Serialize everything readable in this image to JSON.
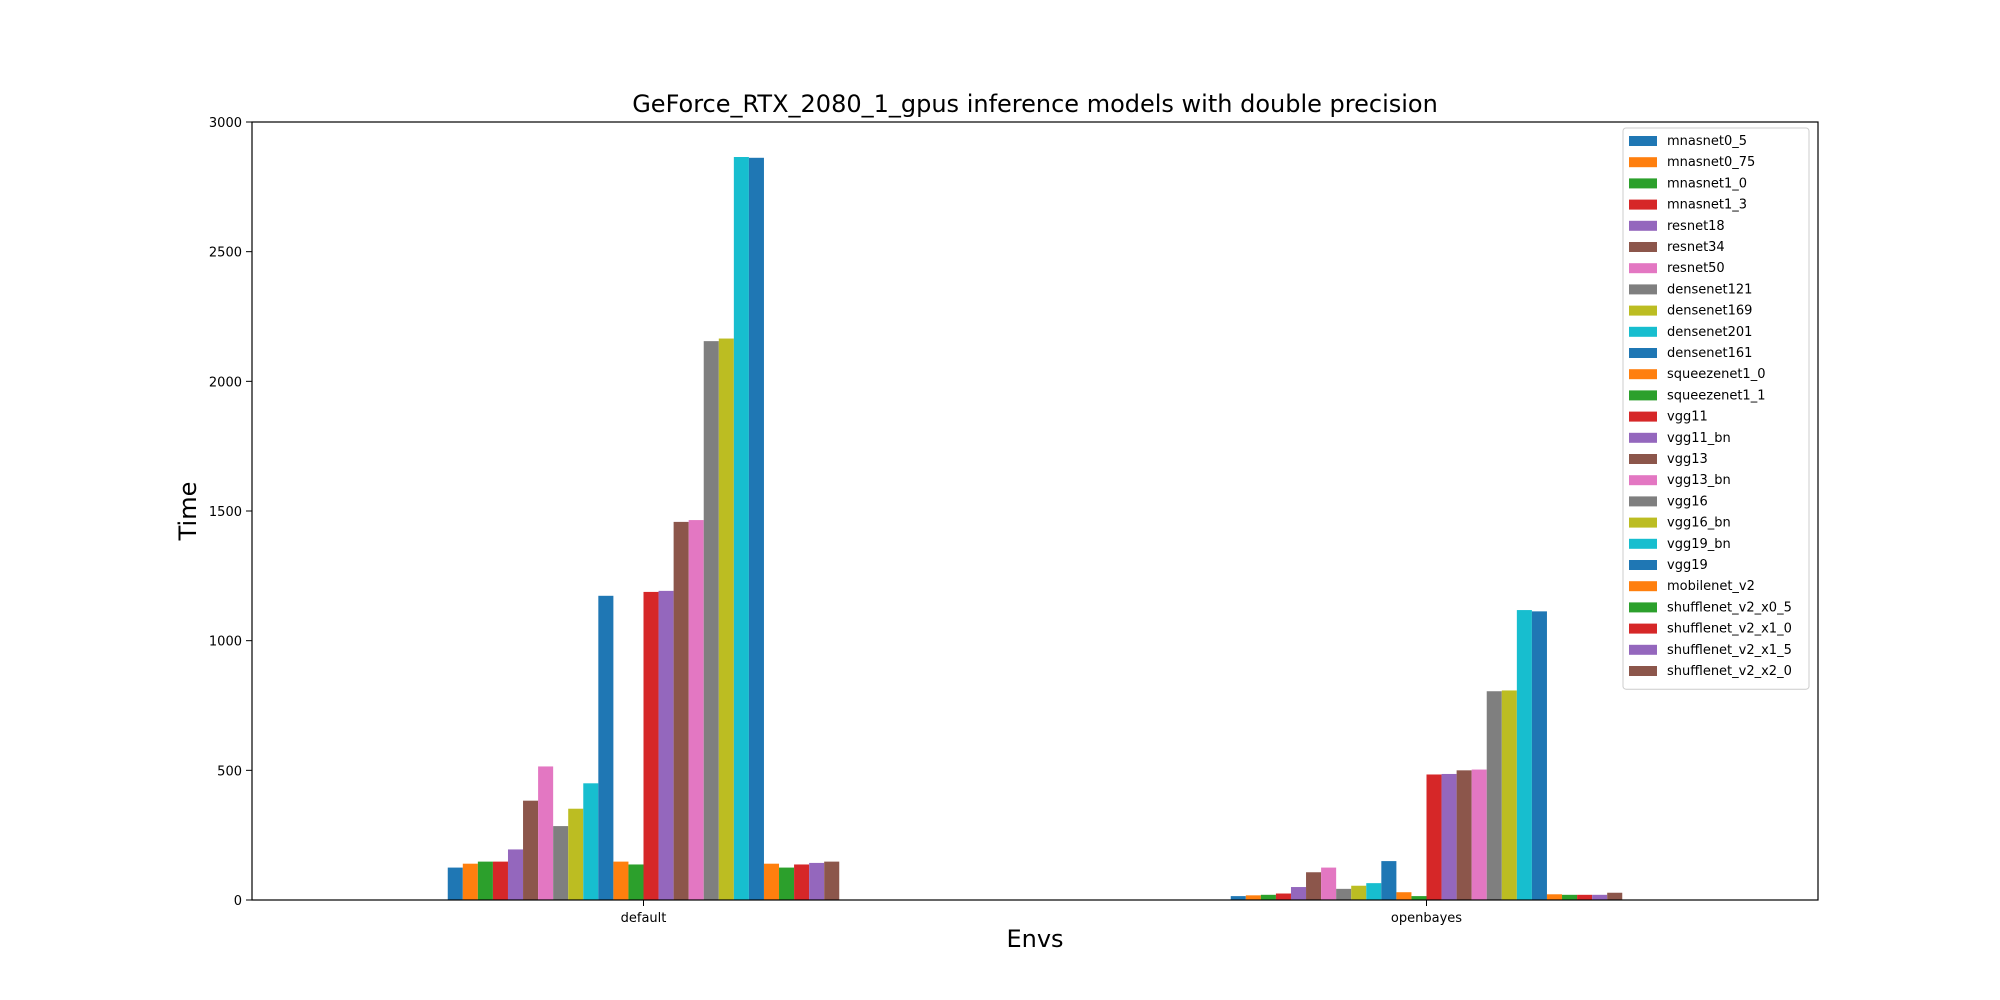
{
  "chart_data": {
    "type": "bar",
    "title": "GeForce_RTX_2080_1_gpus inference models with double precision",
    "xlabel": "Envs",
    "ylabel": "Time",
    "categories": [
      "default",
      "openbayes"
    ],
    "ylim": [
      0,
      3000
    ],
    "yticks": [
      0,
      500,
      1000,
      1500,
      2000,
      2500,
      3000
    ],
    "legend_position": "top-right",
    "grid": false,
    "series": [
      {
        "name": "mnasnet0_5",
        "color": "#1f77b4",
        "values": [
          125,
          15
        ]
      },
      {
        "name": "mnasnet0_75",
        "color": "#ff7f0e",
        "values": [
          140,
          18
        ]
      },
      {
        "name": "mnasnet1_0",
        "color": "#2ca02c",
        "values": [
          148,
          20
        ]
      },
      {
        "name": "mnasnet1_3",
        "color": "#d62728",
        "values": [
          148,
          25
        ]
      },
      {
        "name": "resnet18",
        "color": "#9467bd",
        "values": [
          195,
          50
        ]
      },
      {
        "name": "resnet34",
        "color": "#8c564b",
        "values": [
          383,
          107
        ]
      },
      {
        "name": "resnet50",
        "color": "#e377c2",
        "values": [
          515,
          125
        ]
      },
      {
        "name": "densenet121",
        "color": "#7f7f7f",
        "values": [
          285,
          43
        ]
      },
      {
        "name": "densenet169",
        "color": "#bcbd22",
        "values": [
          352,
          55
        ]
      },
      {
        "name": "densenet201",
        "color": "#17becf",
        "values": [
          450,
          65
        ]
      },
      {
        "name": "densenet161",
        "color": "#1f77b4",
        "values": [
          1173,
          150
        ]
      },
      {
        "name": "squeezenet1_0",
        "color": "#ff7f0e",
        "values": [
          148,
          30
        ]
      },
      {
        "name": "squeezenet1_1",
        "color": "#2ca02c",
        "values": [
          137,
          15
        ]
      },
      {
        "name": "vgg11",
        "color": "#d62728",
        "values": [
          1188,
          484
        ]
      },
      {
        "name": "vgg11_bn",
        "color": "#9467bd",
        "values": [
          1192,
          486
        ]
      },
      {
        "name": "vgg13",
        "color": "#8c564b",
        "values": [
          1458,
          500
        ]
      },
      {
        "name": "vgg13_bn",
        "color": "#e377c2",
        "values": [
          1465,
          503
        ]
      },
      {
        "name": "vgg16",
        "color": "#7f7f7f",
        "values": [
          2155,
          805
        ]
      },
      {
        "name": "vgg16_bn",
        "color": "#bcbd22",
        "values": [
          2165,
          808
        ]
      },
      {
        "name": "vgg19_bn",
        "color": "#17becf",
        "values": [
          2865,
          1118
        ]
      },
      {
        "name": "vgg19",
        "color": "#1f77b4",
        "values": [
          2862,
          1113
        ]
      },
      {
        "name": "mobilenet_v2",
        "color": "#ff7f0e",
        "values": [
          140,
          22
        ]
      },
      {
        "name": "shufflenet_v2_x0_5",
        "color": "#2ca02c",
        "values": [
          125,
          20
        ]
      },
      {
        "name": "shufflenet_v2_x1_0",
        "color": "#d62728",
        "values": [
          137,
          20
        ]
      },
      {
        "name": "shufflenet_v2_x1_5",
        "color": "#9467bd",
        "values": [
          143,
          20
        ]
      },
      {
        "name": "shufflenet_v2_x2_0",
        "color": "#8c564b",
        "values": [
          148,
          28
        ]
      }
    ]
  }
}
